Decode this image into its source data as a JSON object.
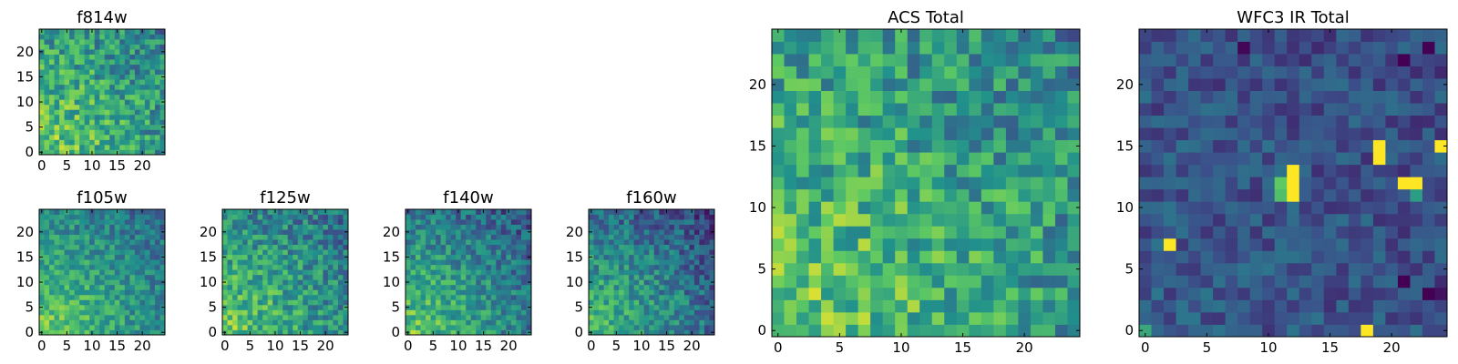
{
  "figure": {
    "background": "#ffffff"
  },
  "colormap": {
    "name": "viridis",
    "stops": [
      "#440154",
      "#3b528b",
      "#21918c",
      "#5ec962",
      "#fde725"
    ]
  },
  "chart_data": [
    {
      "id": "f814w",
      "type": "heatmap",
      "title": "f814w",
      "grid": [
        25,
        25
      ],
      "xlim": [
        0,
        24
      ],
      "ylim": [
        0,
        24
      ],
      "xticks": [
        0,
        5,
        10,
        15,
        20
      ],
      "yticks": [
        0,
        5,
        10,
        15,
        20
      ],
      "value_range": [
        0,
        1
      ],
      "mean": 0.6,
      "gradient": 0.35,
      "noise": 0.22,
      "seed": 11,
      "hotspots": []
    },
    {
      "id": "f105w",
      "type": "heatmap",
      "title": "f105w",
      "grid": [
        25,
        25
      ],
      "xlim": [
        0,
        24
      ],
      "ylim": [
        0,
        24
      ],
      "xticks": [
        0,
        5,
        10,
        15,
        20
      ],
      "yticks": [
        0,
        5,
        10,
        15,
        20
      ],
      "value_range": [
        0,
        1
      ],
      "mean": 0.55,
      "gradient": 0.45,
      "noise": 0.16,
      "seed": 23,
      "hotspots": []
    },
    {
      "id": "f125w",
      "type": "heatmap",
      "title": "f125w",
      "grid": [
        25,
        25
      ],
      "xlim": [
        0,
        24
      ],
      "ylim": [
        0,
        24
      ],
      "xticks": [
        0,
        5,
        10,
        15,
        20
      ],
      "yticks": [
        0,
        5,
        10,
        15,
        20
      ],
      "value_range": [
        0,
        1
      ],
      "mean": 0.55,
      "gradient": 0.4,
      "noise": 0.2,
      "seed": 37,
      "hotspots": []
    },
    {
      "id": "f140w",
      "type": "heatmap",
      "title": "f140w",
      "grid": [
        25,
        25
      ],
      "xlim": [
        0,
        24
      ],
      "ylim": [
        0,
        24
      ],
      "xticks": [
        0,
        5,
        10,
        15,
        20
      ],
      "yticks": [
        0,
        5,
        10,
        15,
        20
      ],
      "value_range": [
        0,
        1
      ],
      "mean": 0.5,
      "gradient": 0.5,
      "noise": 0.18,
      "seed": 41,
      "hotspots": []
    },
    {
      "id": "f160w",
      "type": "heatmap",
      "title": "f160w",
      "grid": [
        25,
        25
      ],
      "xlim": [
        0,
        24
      ],
      "ylim": [
        0,
        24
      ],
      "xticks": [
        0,
        5,
        10,
        15,
        20
      ],
      "yticks": [
        0,
        5,
        10,
        15,
        20
      ],
      "value_range": [
        0,
        1
      ],
      "mean": 0.45,
      "gradient": 0.5,
      "noise": 0.18,
      "seed": 53,
      "hotspots": []
    },
    {
      "id": "acs_total",
      "type": "heatmap",
      "title": "ACS Total",
      "grid": [
        25,
        25
      ],
      "xlim": [
        0,
        24
      ],
      "ylim": [
        0,
        24
      ],
      "xticks": [
        0,
        5,
        10,
        15,
        20
      ],
      "yticks": [
        0,
        5,
        10,
        15,
        20
      ],
      "value_range": [
        0,
        1
      ],
      "mean": 0.6,
      "gradient": 0.35,
      "noise": 0.22,
      "seed": 11,
      "hotspots": []
    },
    {
      "id": "wfc3_ir_total",
      "type": "heatmap",
      "title": "WFC3 IR Total",
      "grid": [
        25,
        25
      ],
      "xlim": [
        0,
        24
      ],
      "ylim": [
        0,
        24
      ],
      "xticks": [
        0,
        5,
        10,
        15,
        20
      ],
      "yticks": [
        0,
        5,
        10,
        15,
        20
      ],
      "value_range": [
        0,
        1
      ],
      "mean": 0.26,
      "gradient": 0.05,
      "noise": 0.12,
      "seed": 71,
      "hotspots": [
        {
          "x": 12,
          "y": 11,
          "v": 1.0
        },
        {
          "x": 12,
          "y": 12,
          "v": 1.0
        },
        {
          "x": 12,
          "y": 13,
          "v": 1.0
        },
        {
          "x": 11,
          "y": 12,
          "v": 0.75
        },
        {
          "x": 11,
          "y": 11,
          "v": 0.7
        },
        {
          "x": 19,
          "y": 15,
          "v": 1.0
        },
        {
          "x": 19,
          "y": 14,
          "v": 1.0
        },
        {
          "x": 21,
          "y": 12,
          "v": 1.0
        },
        {
          "x": 22,
          "y": 12,
          "v": 1.0
        },
        {
          "x": 22,
          "y": 11,
          "v": 0.55
        },
        {
          "x": 24,
          "y": 15,
          "v": 1.0
        },
        {
          "x": 2,
          "y": 7,
          "v": 1.0
        },
        {
          "x": 18,
          "y": 0,
          "v": 1.0
        },
        {
          "x": 0,
          "y": 0,
          "v": 0.6
        },
        {
          "x": 21,
          "y": 4,
          "v": 0.0
        },
        {
          "x": 23,
          "y": 3,
          "v": 0.0
        },
        {
          "x": 24,
          "y": 3,
          "v": 0.05
        },
        {
          "x": 21,
          "y": 22,
          "v": 0.0
        },
        {
          "x": 23,
          "y": 23,
          "v": 0.0
        },
        {
          "x": 8,
          "y": 23,
          "v": 0.02
        }
      ]
    }
  ]
}
